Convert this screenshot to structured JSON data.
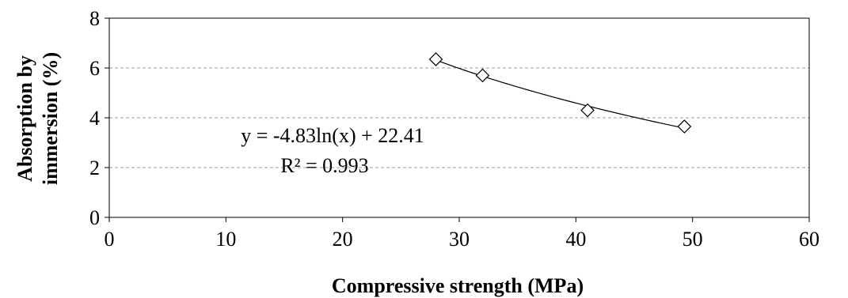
{
  "chart_data": {
    "type": "scatter",
    "xlabel": "Compressive strength (MPa)",
    "ylabel_lines": [
      "Absorption by",
      "immersion (%)"
    ],
    "xlim": [
      0,
      60
    ],
    "ylim": [
      0,
      8
    ],
    "x_ticks": [
      0,
      10,
      20,
      30,
      40,
      50,
      60
    ],
    "y_ticks": [
      0,
      2,
      4,
      6,
      8
    ],
    "grid": "horizontal dashed",
    "legend": "none",
    "series": [
      {
        "x": [
          28,
          32,
          41,
          49.3
        ],
        "y": [
          6.35,
          5.7,
          4.3,
          3.65
        ],
        "marker": "diamond"
      }
    ],
    "trendline": {
      "type": "logarithmic",
      "a": -4.83,
      "b": 22.41,
      "x_range": [
        28,
        49.3
      ]
    },
    "annotations": [
      {
        "text": "y = -4.83ln(x) + 22.41"
      },
      {
        "text": "R² = 0.993"
      }
    ]
  }
}
